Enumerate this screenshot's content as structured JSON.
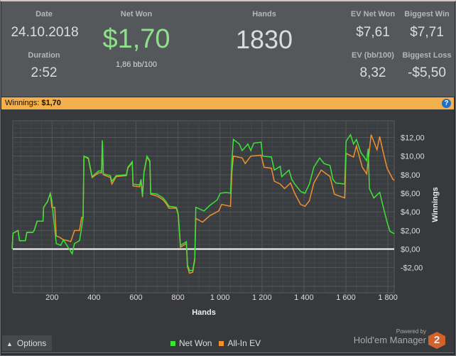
{
  "summary": {
    "date_label": "Date",
    "date": "24.10.2018",
    "duration_label": "Duration",
    "duration": "2:52",
    "net_won_label": "Net Won",
    "net_won": "$1,70",
    "bb100": "1,86 bb/100",
    "hands_label": "Hands",
    "hands": "1830",
    "ev_net_won_label": "EV Net Won",
    "ev_net_won": "$7,61",
    "biggest_win_label": "Biggest Win",
    "biggest_win": "$7,71",
    "ev_bb100_label": "EV (bb/100)",
    "ev_bb100": "8,32",
    "biggest_loss_label": "Biggest Loss",
    "biggest_loss": "-$5,50"
  },
  "bar": {
    "label": "Winnings:",
    "value": "$1,70",
    "help": "?"
  },
  "footer": {
    "options": "Options",
    "powered_by": "Powered by",
    "brand": "Hold'em Manager",
    "brand_badge": "2"
  },
  "colors": {
    "net_won": "#3de23a",
    "ev": "#f09030",
    "zero": "#ffffff",
    "accent": "#f4b04a"
  },
  "chart_data": {
    "type": "line",
    "xlabel": "Hands",
    "ylabel": "Winnings",
    "xlim": [
      13,
      1830
    ],
    "ylim": [
      -4.7,
      13.8
    ],
    "xticks": [
      200,
      400,
      600,
      800,
      1000,
      1200,
      1400,
      1600,
      1800
    ],
    "xtick_labels": [
      "200",
      "400",
      "600",
      "800",
      "1 000",
      "1 200",
      "1 400",
      "1 600",
      "1 800"
    ],
    "yticks": [
      12,
      10,
      8,
      6,
      4,
      2,
      0,
      -2
    ],
    "ytick_labels": [
      "$12,00",
      "$10,00",
      "$8,00",
      "$6,00",
      "$4,00",
      "$2,00",
      "$0,00",
      "-$2,00"
    ],
    "legend": [
      "Net Won",
      "All-In EV"
    ],
    "legend_position": "bottom",
    "series": [
      {
        "name": "Net Won",
        "points": [
          [
            10,
            0
          ],
          [
            14,
            1.7
          ],
          [
            38,
            2.0
          ],
          [
            45,
            0.9
          ],
          [
            73,
            0.9
          ],
          [
            80,
            1.8
          ],
          [
            108,
            1.8
          ],
          [
            115,
            2.0
          ],
          [
            129,
            3.0
          ],
          [
            157,
            3.0
          ],
          [
            160,
            4.5
          ],
          [
            178,
            5.1
          ],
          [
            192,
            6.0
          ],
          [
            199,
            5.2
          ],
          [
            206,
            3.7
          ],
          [
            220,
            0.6
          ],
          [
            241,
            0.4
          ],
          [
            254,
            1.0
          ],
          [
            275,
            0.25
          ],
          [
            296,
            -0.5
          ],
          [
            307,
            0.6
          ],
          [
            331,
            0.9
          ],
          [
            341,
            2.3
          ],
          [
            348,
            3.4
          ],
          [
            352,
            10.0
          ],
          [
            373,
            9.8
          ],
          [
            391,
            7.8
          ],
          [
            422,
            8.4
          ],
          [
            436,
            8.4
          ],
          [
            440,
            11.7
          ],
          [
            444,
            8.1
          ],
          [
            478,
            7.9
          ],
          [
            485,
            7.3
          ],
          [
            506,
            7.9
          ],
          [
            554,
            8.0
          ],
          [
            561,
            8.8
          ],
          [
            582,
            9.4
          ],
          [
            586,
            7.0
          ],
          [
            617,
            6.9
          ],
          [
            624,
            7.5
          ],
          [
            631,
            5.7
          ],
          [
            638,
            8.3
          ],
          [
            652,
            10.0
          ],
          [
            666,
            9.5
          ],
          [
            670,
            6.0
          ],
          [
            701,
            5.9
          ],
          [
            729,
            5.5
          ],
          [
            743,
            5.1
          ],
          [
            757,
            4.6
          ],
          [
            792,
            4.5
          ],
          [
            801,
            3.8
          ],
          [
            812,
            0.4
          ],
          [
            840,
            0.8
          ],
          [
            845,
            -1.7
          ],
          [
            855,
            -2.3
          ],
          [
            870,
            -2.3
          ],
          [
            880,
            -1.0
          ],
          [
            885,
            4.5
          ],
          [
            924,
            4.1
          ],
          [
            952,
            4.7
          ],
          [
            987,
            5.3
          ],
          [
            1001,
            6.0
          ],
          [
            1029,
            6.1
          ],
          [
            1050,
            6.0
          ],
          [
            1057,
            9.5
          ],
          [
            1064,
            11.8
          ],
          [
            1092,
            11.3
          ],
          [
            1106,
            10.6
          ],
          [
            1133,
            11.3
          ],
          [
            1147,
            10.6
          ],
          [
            1161,
            11.4
          ],
          [
            1196,
            11.5
          ],
          [
            1203,
            10.0
          ],
          [
            1245,
            9.9
          ],
          [
            1259,
            8.5
          ],
          [
            1287,
            8.9
          ],
          [
            1294,
            7.8
          ],
          [
            1329,
            8.5
          ],
          [
            1342,
            7.5
          ],
          [
            1356,
            7.0
          ],
          [
            1384,
            6.2
          ],
          [
            1405,
            6.0
          ],
          [
            1426,
            7.0
          ],
          [
            1447,
            8.8
          ],
          [
            1475,
            9.8
          ],
          [
            1496,
            9.2
          ],
          [
            1524,
            9.0
          ],
          [
            1538,
            7.5
          ],
          [
            1552,
            7.1
          ],
          [
            1594,
            7.0
          ],
          [
            1601,
            11.6
          ],
          [
            1622,
            12.3
          ],
          [
            1636,
            11.3
          ],
          [
            1650,
            11.8
          ],
          [
            1671,
            10.4
          ],
          [
            1699,
            9.5
          ],
          [
            1706,
            10.8
          ],
          [
            1712,
            6.5
          ],
          [
            1733,
            5.5
          ],
          [
            1761,
            6.1
          ],
          [
            1776,
            4.7
          ],
          [
            1796,
            2.9
          ],
          [
            1810,
            1.9
          ],
          [
            1831,
            1.65
          ]
        ]
      },
      {
        "name": "All-In EV",
        "points": [
          [
            10,
            0
          ],
          [
            14,
            1.7
          ],
          [
            38,
            2.0
          ],
          [
            45,
            0.9
          ],
          [
            73,
            0.9
          ],
          [
            80,
            1.8
          ],
          [
            108,
            1.8
          ],
          [
            115,
            2.0
          ],
          [
            129,
            3.0
          ],
          [
            157,
            3.0
          ],
          [
            160,
            4.5
          ],
          [
            178,
            5.1
          ],
          [
            192,
            6.0
          ],
          [
            199,
            4.5
          ],
          [
            213,
            4.5
          ],
          [
            220,
            1.4
          ],
          [
            234,
            1.3
          ],
          [
            254,
            1.0
          ],
          [
            275,
            0.9
          ],
          [
            289,
            0.8
          ],
          [
            307,
            2.0
          ],
          [
            331,
            2.0
          ],
          [
            341,
            3.4
          ],
          [
            348,
            3.4
          ],
          [
            352,
            10.0
          ],
          [
            373,
            9.7
          ],
          [
            391,
            7.7
          ],
          [
            422,
            8.2
          ],
          [
            436,
            8.2
          ],
          [
            440,
            11.7
          ],
          [
            444,
            8.0
          ],
          [
            478,
            7.7
          ],
          [
            485,
            7.0
          ],
          [
            506,
            7.8
          ],
          [
            554,
            7.9
          ],
          [
            561,
            8.7
          ],
          [
            582,
            9.3
          ],
          [
            586,
            6.8
          ],
          [
            617,
            6.7
          ],
          [
            624,
            7.3
          ],
          [
            631,
            5.6
          ],
          [
            638,
            8.2
          ],
          [
            652,
            9.9
          ],
          [
            666,
            9.4
          ],
          [
            670,
            5.9
          ],
          [
            701,
            5.7
          ],
          [
            729,
            5.3
          ],
          [
            743,
            4.9
          ],
          [
            757,
            4.4
          ],
          [
            792,
            4.4
          ],
          [
            801,
            3.7
          ],
          [
            812,
            0.2
          ],
          [
            840,
            0.6
          ],
          [
            845,
            -1.9
          ],
          [
            855,
            -2.6
          ],
          [
            870,
            -2.5
          ],
          [
            880,
            -1.2
          ],
          [
            885,
            3.3
          ],
          [
            917,
            2.9
          ],
          [
            952,
            3.6
          ],
          [
            994,
            4.1
          ],
          [
            1008,
            4.8
          ],
          [
            1050,
            4.6
          ],
          [
            1057,
            8.3
          ],
          [
            1064,
            10.0
          ],
          [
            1106,
            9.8
          ],
          [
            1120,
            9.2
          ],
          [
            1147,
            10.0
          ],
          [
            1196,
            10.1
          ],
          [
            1210,
            8.8
          ],
          [
            1245,
            8.7
          ],
          [
            1259,
            7.3
          ],
          [
            1287,
            7.0
          ],
          [
            1308,
            6.5
          ],
          [
            1336,
            7.1
          ],
          [
            1356,
            6.0
          ],
          [
            1384,
            4.8
          ],
          [
            1405,
            4.6
          ],
          [
            1426,
            5.2
          ],
          [
            1447,
            7.1
          ],
          [
            1482,
            8.5
          ],
          [
            1524,
            7.8
          ],
          [
            1545,
            5.9
          ],
          [
            1594,
            5.5
          ],
          [
            1601,
            10.3
          ],
          [
            1636,
            9.9
          ],
          [
            1650,
            11.1
          ],
          [
            1678,
            8.8
          ],
          [
            1699,
            8.1
          ],
          [
            1706,
            9.5
          ],
          [
            1720,
            12.3
          ],
          [
            1748,
            10.7
          ],
          [
            1761,
            12.1
          ],
          [
            1776,
            10.6
          ],
          [
            1796,
            8.7
          ],
          [
            1824,
            7.5
          ],
          [
            1831,
            7.4
          ]
        ]
      }
    ]
  }
}
